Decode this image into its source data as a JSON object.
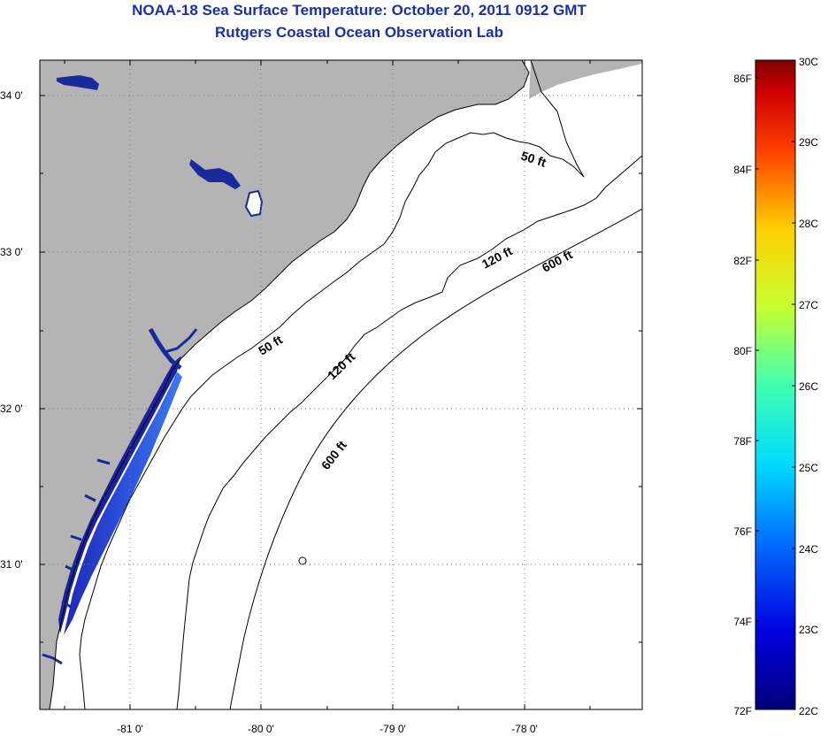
{
  "title": "NOAA-18 Sea Surface Temperature:  October 20, 2011 0912 GMT",
  "subtitle": "Rutgers Coastal Ocean Observation Lab",
  "map": {
    "lat_ticks": [
      "34 0'",
      "33 0'",
      "32 0'",
      "31 0'"
    ],
    "lon_ticks": [
      "-81 0'",
      "-80 0'",
      "-79 0'",
      "-78 0'"
    ],
    "isobath_labels": [
      "50 ft",
      "120 ft",
      "600 ft",
      "50 ft",
      "120 ft",
      "600 ft"
    ]
  },
  "colorbar": {
    "fahrenheit_labels": [
      "86F",
      "84F",
      "82F",
      "80F",
      "78F",
      "76F",
      "74F",
      "72F"
    ],
    "celsius_labels": [
      "30C",
      "29C",
      "28C",
      "27C",
      "26C",
      "25C",
      "24C",
      "23C",
      "22C"
    ],
    "colors": {
      "land": "#b4b4b4",
      "coastal_water": "#2a3cc8",
      "deep_blue": "#00006e",
      "scale_top": "#800000",
      "scale_bottom": "#00007a"
    }
  }
}
